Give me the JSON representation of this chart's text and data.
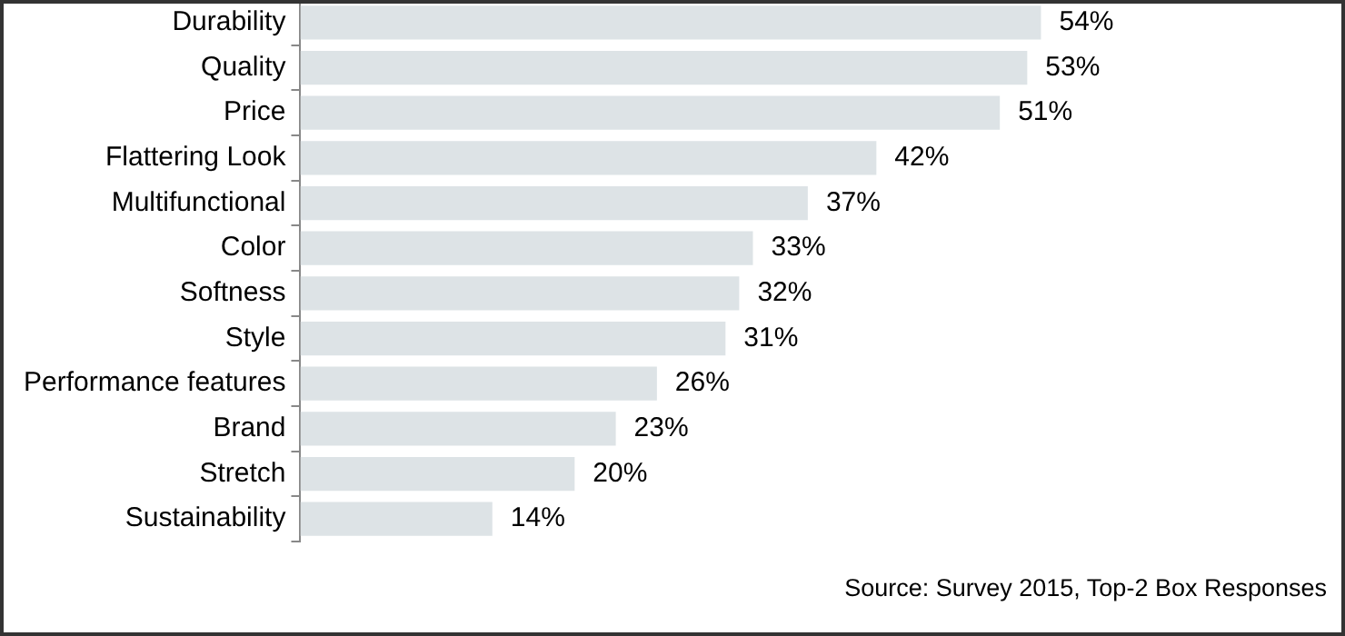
{
  "chart_data": {
    "type": "bar",
    "orientation": "horizontal",
    "categories": [
      "Durability",
      "Quality",
      "Price",
      "Flattering Look",
      "Multifunctional",
      "Color",
      "Softness",
      "Style",
      "Performance features",
      "Brand",
      "Stretch",
      "Sustainability"
    ],
    "values": [
      54,
      53,
      51,
      42,
      37,
      33,
      32,
      31,
      26,
      23,
      20,
      14
    ],
    "value_labels": [
      "54%",
      "53%",
      "51%",
      "42%",
      "37%",
      "33%",
      "32%",
      "31%",
      "26%",
      "23%",
      "20%",
      "14%"
    ],
    "color": "#dde3e6",
    "tick_labels": "y",
    "annotations": [
      "Source: Survey 2015, Top-2 Box Responses"
    ]
  }
}
